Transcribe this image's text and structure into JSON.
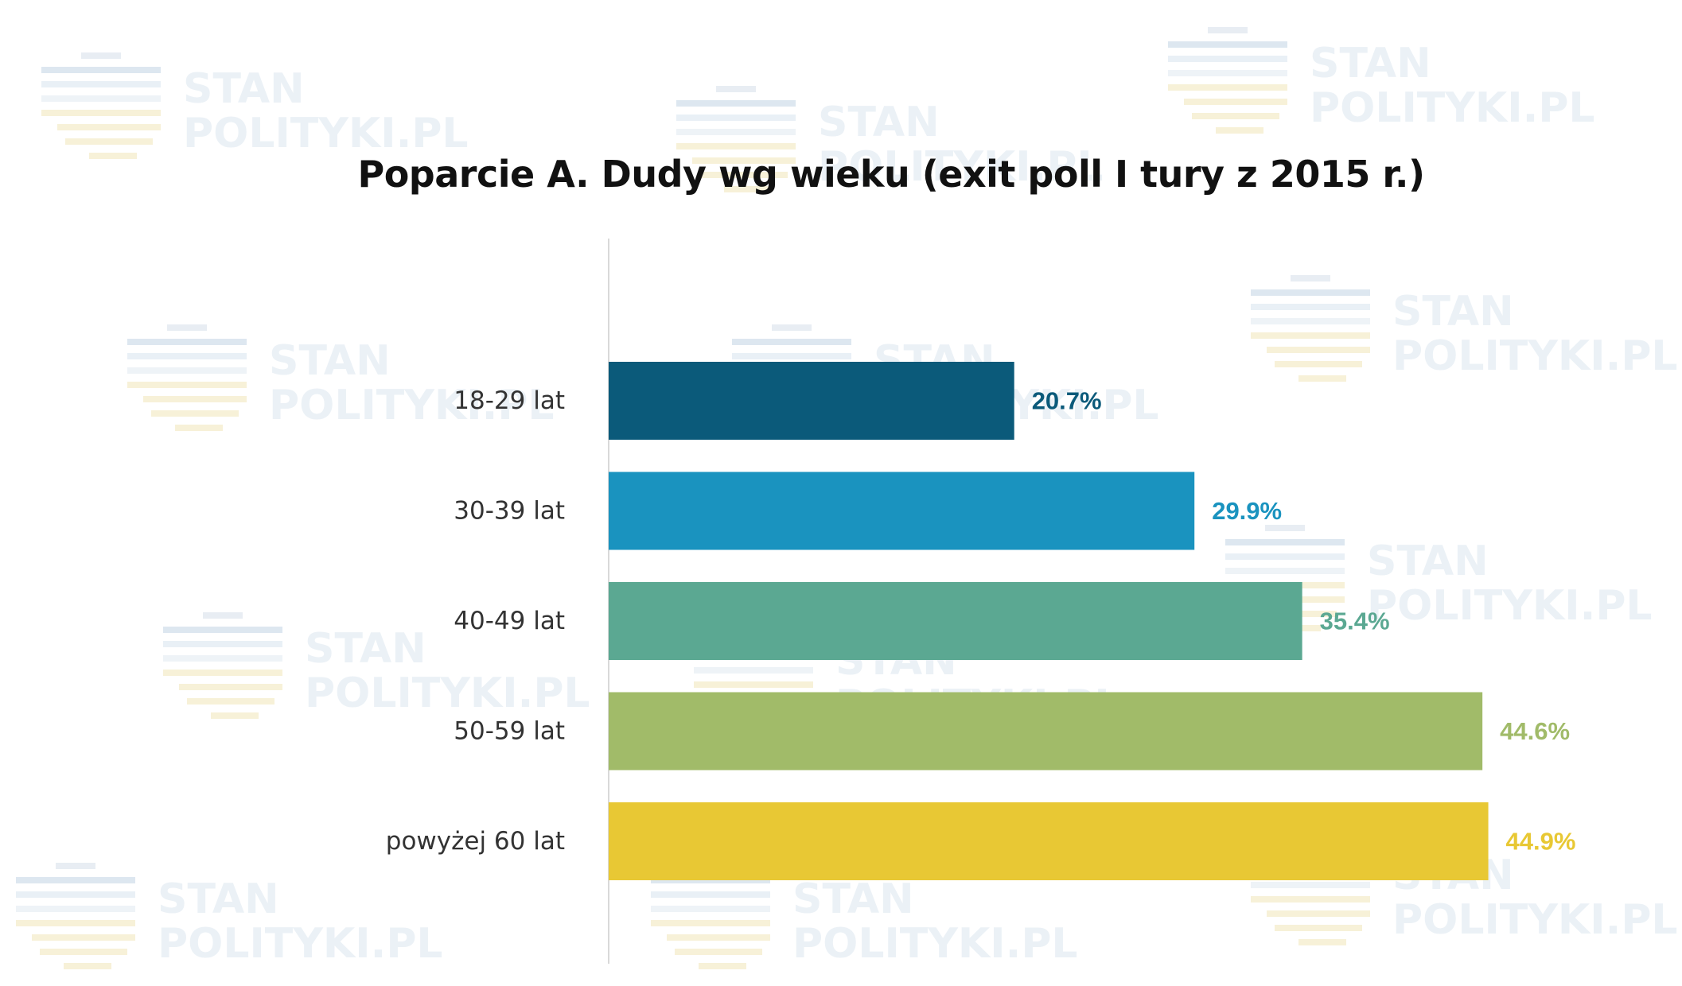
{
  "chart_data": {
    "type": "bar",
    "orientation": "horizontal",
    "title": "Poparcie A. Dudy wg wieku (exit poll I tury z 2015 r.)",
    "categories": [
      "18-29 lat",
      "30-39 lat",
      "40-49 lat",
      "50-59 lat",
      "powyżej 60 lat"
    ],
    "values": [
      20.7,
      29.9,
      35.4,
      44.6,
      44.9
    ],
    "value_labels": [
      "20.7%",
      "29.9%",
      "35.4%",
      "44.6%",
      "44.9%"
    ],
    "colors": [
      "#0b5a7a",
      "#1a93bf",
      "#5ba892",
      "#a1bb69",
      "#e8c834"
    ],
    "xlim": [
      0,
      53
    ],
    "grid": false,
    "legend": "none"
  },
  "watermark": {
    "line1": "STAN",
    "line2": "POLITYKI.PL",
    "line_colors": [
      "#e8edf3",
      "#dde7f0",
      "#e9f0f6",
      "#eef3f7",
      "#f7f1d8"
    ]
  }
}
